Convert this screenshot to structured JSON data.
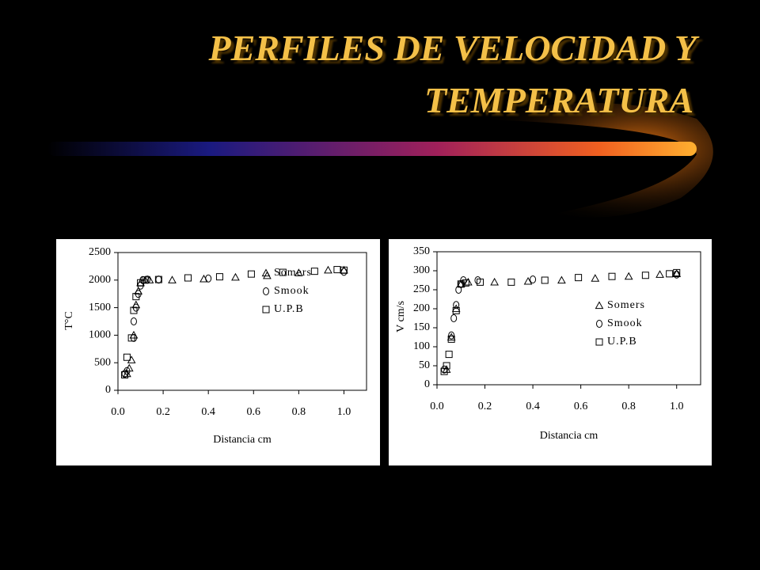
{
  "title_lines": [
    "PERFILES DE VELOCIDAD Y",
    "TEMPERATURA"
  ],
  "chart_data": [
    {
      "type": "scatter",
      "y_label": "T°C",
      "x_label": "Distancia cm",
      "xlim": [
        0,
        1.1
      ],
      "xticks": [
        {
          "value": 0,
          "label": "0.0"
        },
        0.2,
        0.4,
        0.6,
        0.8,
        {
          "value": 1,
          "label": "1.0"
        }
      ],
      "ylim": [
        0,
        2500
      ],
      "yticks": [
        0,
        500,
        1000,
        1500,
        2000,
        2500
      ],
      "legend": "right",
      "series": [
        {
          "name": "Somers",
          "marker": "triangle",
          "color": "#000000",
          "x": [
            0.04,
            0.05,
            0.06,
            0.07,
            0.08,
            0.09,
            0.1,
            0.12,
            0.14,
            0.24,
            0.38,
            0.52,
            0.66,
            0.8,
            0.93,
            1.0
          ],
          "values": [
            300,
            400,
            550,
            1000,
            1550,
            1800,
            1950,
            2000,
            2000,
            2000,
            2020,
            2050,
            2080,
            2130,
            2180,
            2180
          ]
        },
        {
          "name": "Smook",
          "marker": "circle",
          "color": "#000000",
          "x": [
            0.03,
            0.04,
            0.07,
            0.07,
            0.08,
            0.09,
            0.1,
            0.11,
            0.13,
            0.18,
            0.4,
            1.0
          ],
          "values": [
            300,
            350,
            950,
            1250,
            1500,
            1750,
            1900,
            2000,
            2010,
            2010,
            2030,
            2150
          ]
        },
        {
          "name": "U.P.B",
          "marker": "square",
          "color": "#000000",
          "x": [
            0.03,
            0.04,
            0.06,
            0.07,
            0.08,
            0.1,
            0.12,
            0.18,
            0.31,
            0.45,
            0.59,
            0.73,
            0.87,
            0.97,
            1.0
          ],
          "values": [
            280,
            600,
            950,
            1450,
            1700,
            1950,
            2000,
            2010,
            2040,
            2060,
            2110,
            2140,
            2160,
            2190,
            2180
          ]
        }
      ]
    },
    {
      "type": "scatter",
      "y_label": "V cm/s",
      "x_label": "Distancia cm",
      "xlim": [
        0,
        1.1
      ],
      "xticks": [
        {
          "value": 0,
          "label": "0.0"
        },
        0.2,
        0.4,
        0.6,
        0.8,
        {
          "value": 1,
          "label": "1.0"
        }
      ],
      "ylim": [
        0,
        350
      ],
      "yticks": [
        0,
        50,
        100,
        150,
        200,
        250,
        300,
        350
      ],
      "legend": "right",
      "series": [
        {
          "name": "Somers",
          "marker": "triangle",
          "color": "#000000",
          "x": [
            0.04,
            0.06,
            0.08,
            0.1,
            0.13,
            0.24,
            0.38,
            0.52,
            0.66,
            0.8,
            0.93,
            1.0
          ],
          "values": [
            40,
            125,
            200,
            265,
            270,
            270,
            272,
            275,
            280,
            285,
            290,
            292
          ]
        },
        {
          "name": "Smook",
          "marker": "circle",
          "color": "#000000",
          "x": [
            0.03,
            0.06,
            0.07,
            0.08,
            0.09,
            0.1,
            0.11,
            0.17,
            0.4,
            1.0
          ],
          "values": [
            40,
            130,
            175,
            210,
            250,
            265,
            275,
            275,
            277,
            290
          ]
        },
        {
          "name": "U.P.B",
          "marker": "square",
          "color": "#000000",
          "x": [
            0.03,
            0.04,
            0.05,
            0.06,
            0.08,
            0.1,
            0.12,
            0.18,
            0.31,
            0.45,
            0.59,
            0.73,
            0.87,
            0.97,
            1.0
          ],
          "values": [
            35,
            50,
            80,
            120,
            195,
            265,
            268,
            270,
            270,
            275,
            282,
            285,
            288,
            292,
            295
          ]
        }
      ]
    }
  ]
}
